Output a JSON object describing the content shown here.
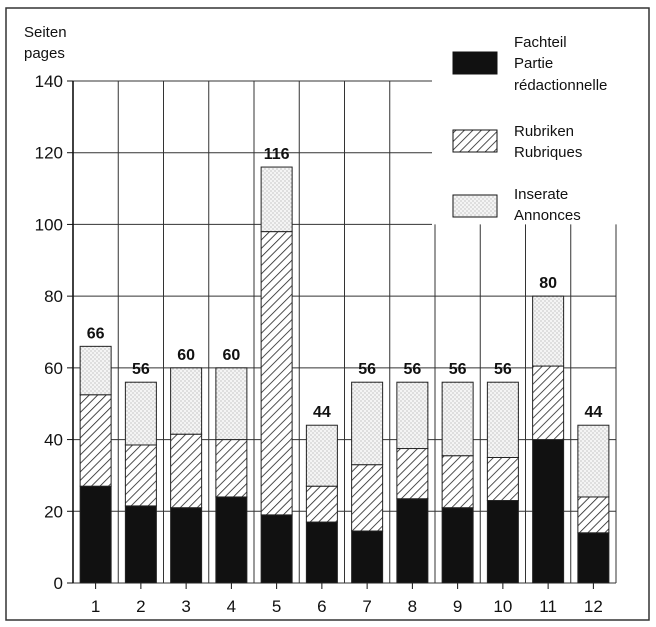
{
  "chart_data": {
    "type": "bar",
    "stacked": true,
    "ylabel": [
      "Seiten",
      "pages"
    ],
    "ylim": [
      0,
      140
    ],
    "yticks": [
      0,
      20,
      40,
      60,
      80,
      100,
      120,
      140
    ],
    "grid": true,
    "legend_position": "top-right",
    "categories": [
      "1",
      "2",
      "3",
      "4",
      "5",
      "6",
      "7",
      "8",
      "9",
      "10",
      "11",
      "12"
    ],
    "totals": [
      "66",
      "56",
      "60",
      "60",
      "116",
      "44",
      "56",
      "56",
      "56",
      "56",
      "80",
      "44"
    ],
    "series": [
      {
        "name": [
          "Fachteil",
          "Partie",
          "rédactionnelle"
        ],
        "fill": "solid",
        "color": "#111111",
        "values": [
          27,
          21.5,
          21,
          24,
          19,
          17,
          14.5,
          23.5,
          21,
          23,
          40,
          14
        ]
      },
      {
        "name": [
          "Rubriken",
          "Rubriques"
        ],
        "fill": "hatched",
        "color": "#333333",
        "values": [
          25.5,
          17,
          20.5,
          16,
          79,
          10,
          18.5,
          14,
          14.5,
          12,
          20.5,
          10
        ]
      },
      {
        "name": [
          "Inserate",
          "Annonces"
        ],
        "fill": "dotted",
        "color": "#eeeeee",
        "values": [
          13.5,
          17.5,
          18.5,
          20,
          18,
          17,
          23,
          18.5,
          20.5,
          21,
          19.5,
          20
        ]
      }
    ]
  }
}
